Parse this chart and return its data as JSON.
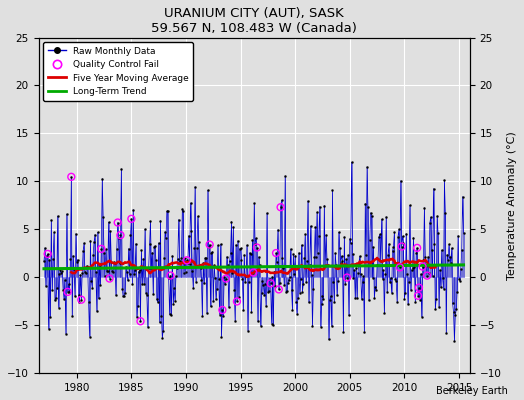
{
  "title": "URANIUM CITY (AUT), SASK",
  "subtitle": "59.567 N, 108.483 W (Canada)",
  "ylabel": "Temperature Anomaly (°C)",
  "credit": "Berkeley Earth",
  "xlim": [
    1976.5,
    2016.0
  ],
  "ylim": [
    -10,
    25
  ],
  "yticks_left": [
    -10,
    -5,
    0,
    5,
    10,
    15,
    20,
    25
  ],
  "yticks_right": [
    -10,
    -5,
    0,
    5,
    10,
    15,
    20,
    25
  ],
  "xticks": [
    1980,
    1985,
    1990,
    1995,
    2000,
    2005,
    2010,
    2015
  ],
  "background_color": "#e0e0e0",
  "plot_bg_color": "#e0e0e0",
  "line_color": "#0000cc",
  "moving_avg_color": "#dd0000",
  "trend_color": "#00aa00",
  "qc_color": "#ff00ff",
  "grid_color": "#ffffff"
}
